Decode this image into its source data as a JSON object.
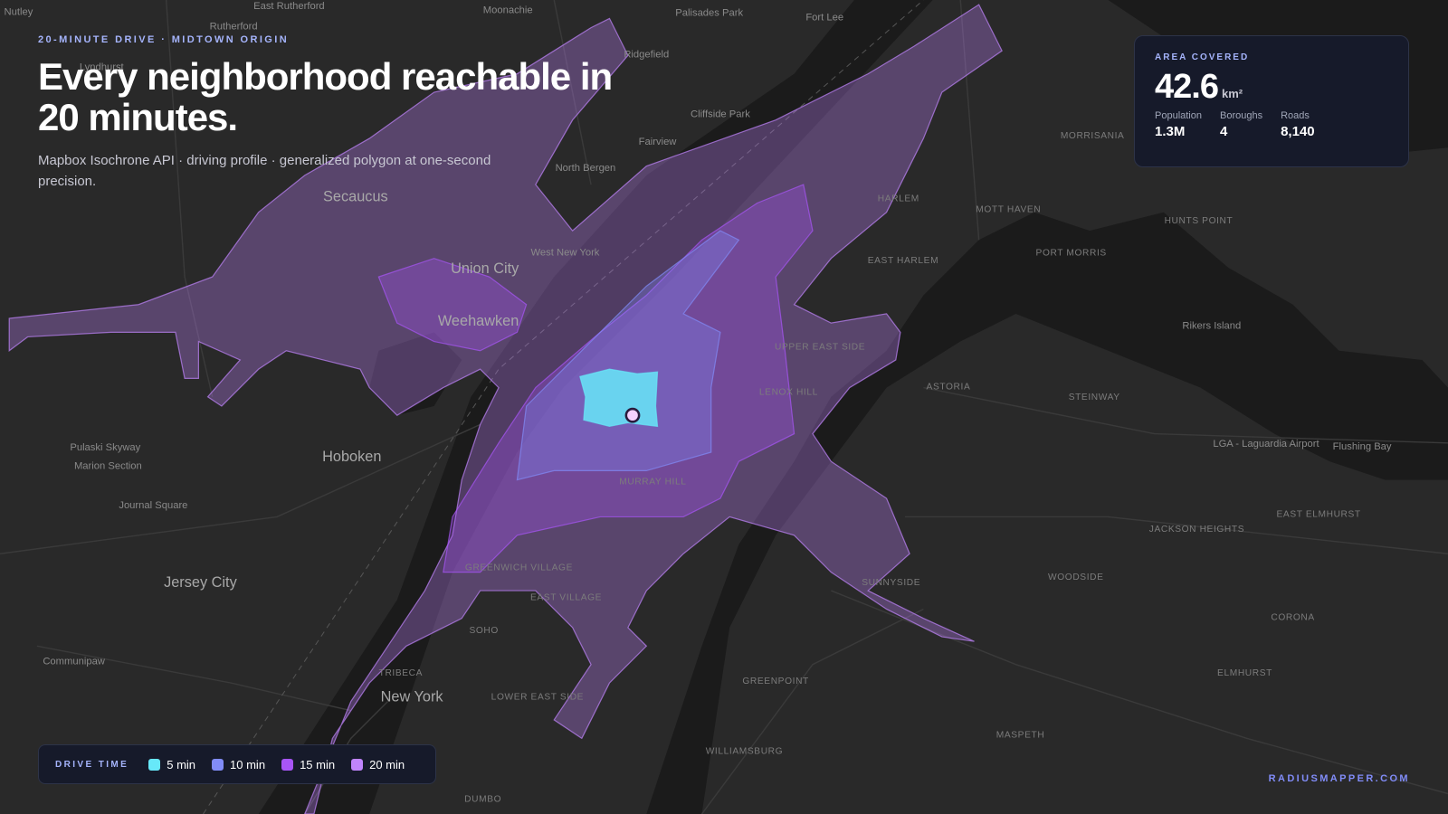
{
  "header": {
    "eyebrow": "20-MINUTE DRIVE · MIDTOWN ORIGIN",
    "title": "Every neighborhood reachable in 20 minutes.",
    "subtitle": "Mapbox Isochrone API · driving profile · generalized polygon at one-second precision."
  },
  "stats_card": {
    "label": "AREA COVERED",
    "value": "42.6",
    "unit": "km²",
    "stats": [
      {
        "label": "Population",
        "value": "1.3M"
      },
      {
        "label": "Boroughs",
        "value": "4"
      },
      {
        "label": "Roads",
        "value": "8,140"
      }
    ]
  },
  "legend": {
    "title": "DRIVE TIME",
    "items": [
      {
        "label": "5 min",
        "color": "#67e8f9"
      },
      {
        "label": "10 min",
        "color": "#818cf8"
      },
      {
        "label": "15 min",
        "color": "#a855f7"
      },
      {
        "label": "20 min",
        "color": "#c084fc"
      }
    ]
  },
  "attribution": "RADIUSMAPPER.COM",
  "map_labels": [
    "Nutley",
    "East Rutherford",
    "Moonachie",
    "Palisades Park",
    "Fort Lee",
    "Rutherford",
    "Lyndhurst",
    "Ridgefield",
    "Cliffside Park",
    "Fairview",
    "North Bergen",
    "Secaucus",
    "West New York",
    "Union City",
    "Weehawken",
    "Hoboken",
    "Jersey City",
    "New York",
    "Communipaw",
    "Journal Square",
    "Marion Section",
    "Pulaski Skyway",
    "HARLEM",
    "EAST HARLEM",
    "UPPER EAST SIDE",
    "LENOX HILL",
    "MURRAY HILL",
    "GREENWICH VILLAGE",
    "EAST VILLAGE",
    "SOHO",
    "TRIBECA",
    "LOWER EAST SIDE",
    "GREENPOINT",
    "WILLIAMSBURG",
    "MASPETH",
    "WOODSIDE",
    "SUNNYSIDE",
    "ASTORIA",
    "STEINWAY",
    "JACKSON HEIGHTS",
    "EAST ELMHURST",
    "CORONA",
    "ELMHURST",
    "Rikers Island",
    "LGA - Laguardia Airport",
    "HUNTS POINT",
    "PORT MORRIS",
    "MOTT HAVEN",
    "MORRISANIA",
    "DUMBO",
    "Flushing Bay"
  ]
}
